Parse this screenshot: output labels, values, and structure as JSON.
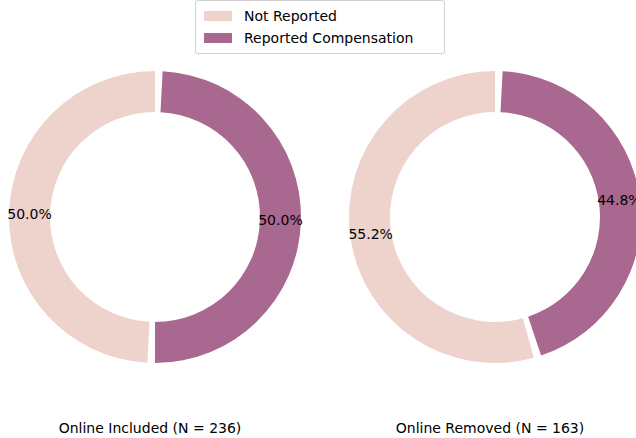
{
  "chart_data": [
    {
      "type": "pie",
      "title": "Online Included (N = 236)",
      "categories": [
        "Not Reported",
        "Reported Compensation"
      ],
      "values": [
        50,
        50
      ],
      "value_labels": [
        "50.0%",
        "50.0%"
      ],
      "colors": [
        "#eed2cc",
        "#a8688f"
      ],
      "legend": "top"
    },
    {
      "type": "pie",
      "title": "Online Removed (N = 163)",
      "categories": [
        "Not Reported",
        "Reported Compensation"
      ],
      "values": [
        55.2,
        44.8
      ],
      "value_labels": [
        "55.2%",
        "44.8%"
      ],
      "colors": [
        "#eed2cc",
        "#a8688f"
      ],
      "legend": "top"
    }
  ]
}
